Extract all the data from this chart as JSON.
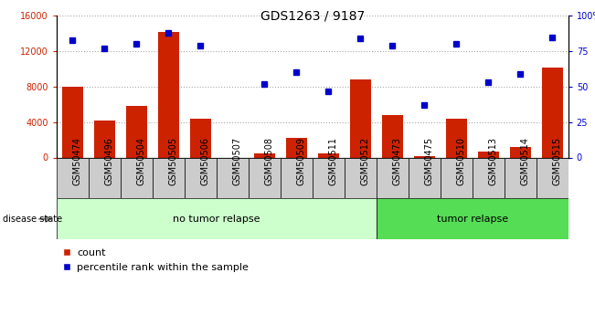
{
  "title": "GDS1263 / 9187",
  "samples": [
    "GSM50474",
    "GSM50496",
    "GSM50504",
    "GSM50505",
    "GSM50506",
    "GSM50507",
    "GSM50508",
    "GSM50509",
    "GSM50511",
    "GSM50512",
    "GSM50473",
    "GSM50475",
    "GSM50510",
    "GSM50513",
    "GSM50514",
    "GSM50515"
  ],
  "counts": [
    8000,
    4200,
    5800,
    14200,
    4400,
    0,
    500,
    2200,
    500,
    8800,
    4800,
    200,
    4400,
    700,
    1200,
    10200
  ],
  "percentiles": [
    83,
    77,
    80,
    88,
    79,
    null,
    52,
    60,
    47,
    84,
    79,
    37,
    80,
    53,
    59,
    85
  ],
  "n_no_tumor": 10,
  "n_tumor": 6,
  "bar_color": "#cc2200",
  "dot_color": "#0000cc",
  "bg_color_no_tumor": "#ccffcc",
  "bg_color_tumor": "#55dd55",
  "tick_bg_color": "#cccccc",
  "ylim_left": [
    0,
    16000
  ],
  "ylim_right": [
    0,
    100
  ],
  "yticks_left": [
    0,
    4000,
    8000,
    12000,
    16000
  ],
  "yticks_right": [
    0,
    25,
    50,
    75,
    100
  ],
  "yticklabels_right": [
    "0",
    "25",
    "50",
    "75",
    "100%"
  ],
  "grid_color": "#aaaaaa",
  "title_fontsize": 10,
  "tick_fontsize": 7,
  "label_fontsize": 8
}
